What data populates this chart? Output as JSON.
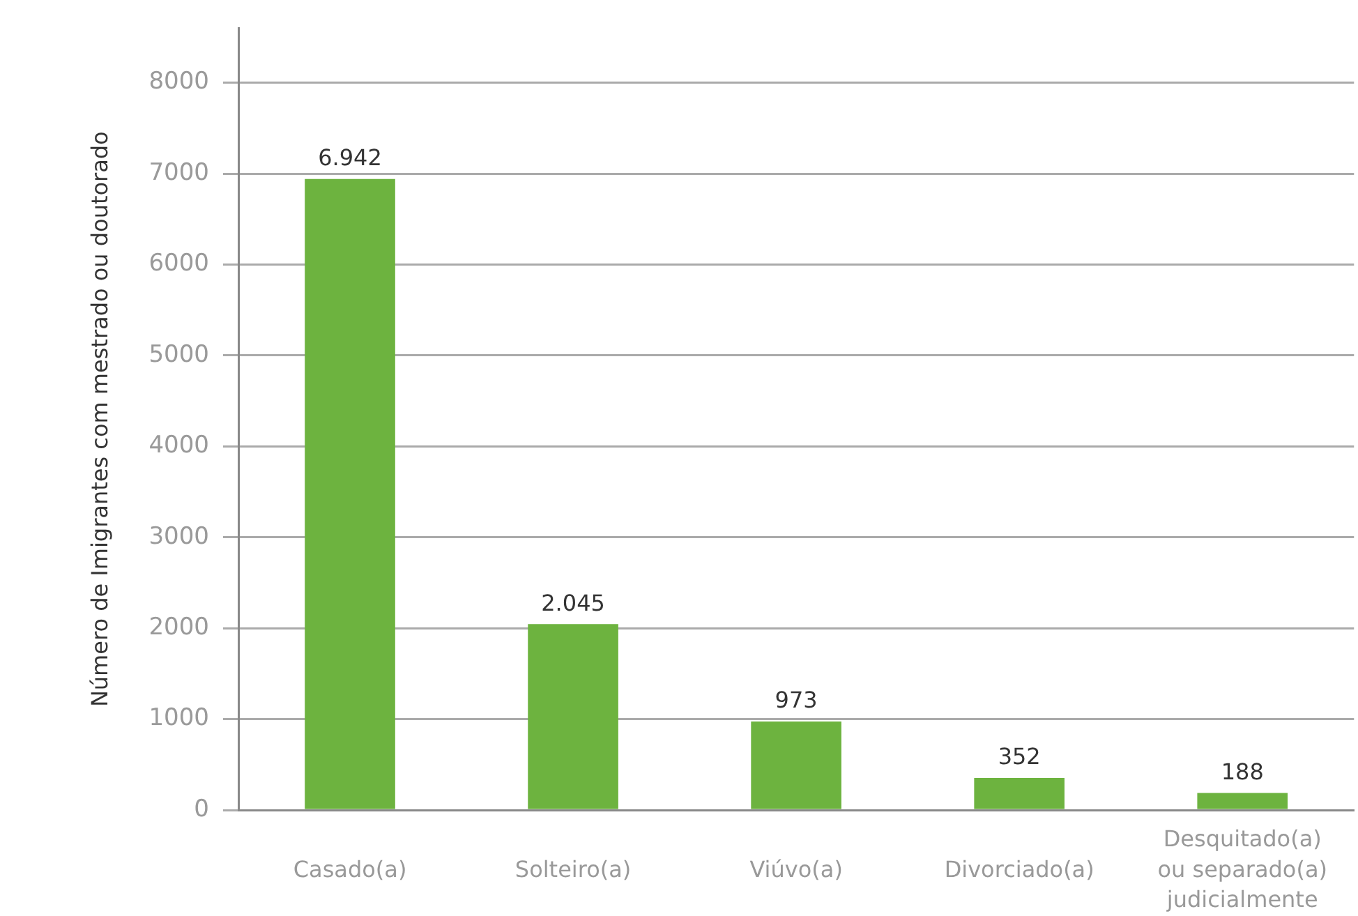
{
  "chart_data": {
    "type": "bar",
    "ylabel": "Número de Imigrantes com mestrado ou doutorado",
    "categories": [
      "Casado(a)",
      "Solteiro(a)",
      "Viúvo(a)",
      "Divorciado(a)",
      "Desquitado(a) ou separado(a) judicialmente"
    ],
    "values": [
      6942,
      2045,
      973,
      352,
      188
    ],
    "value_labels": [
      "6.942",
      "2.045",
      "973",
      "352",
      "188"
    ],
    "color": "#6db33f",
    "ylim": [
      0,
      8600
    ],
    "yticks": [
      0,
      1000,
      2000,
      3000,
      4000,
      5000,
      6000,
      7000,
      8000
    ],
    "grid": "y"
  }
}
